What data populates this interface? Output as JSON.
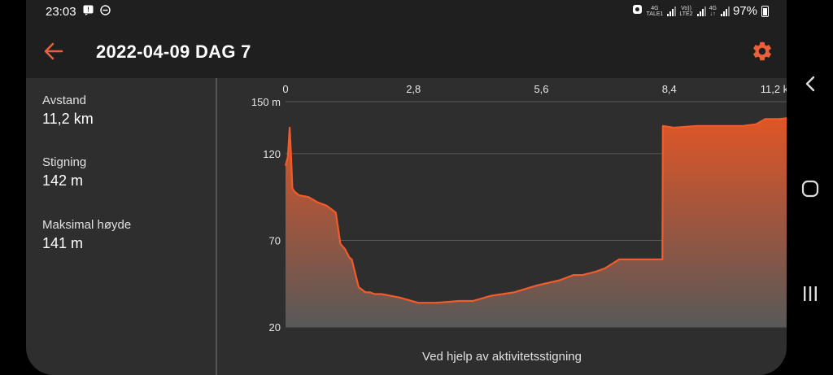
{
  "status_bar": {
    "time": "23:03",
    "battery": "97%",
    "sim1_net": "4G",
    "sim1_label": "TALE1",
    "volte": "Vo))",
    "lte2": "LTE2",
    "sim2_net": "4G",
    "sim2_label": "LTE2"
  },
  "app_bar": {
    "title": "2022-04-09 DAG 7",
    "back_icon": "arrow-left-icon",
    "settings_icon": "gear-icon",
    "accent_color": "#e8613a"
  },
  "stats": [
    {
      "label": "Avstand",
      "value": "11,2 km"
    },
    {
      "label": "Stigning",
      "value": "142 m"
    },
    {
      "label": "Maksimal høyde",
      "value": "141 m"
    }
  ],
  "chart_data": {
    "type": "area",
    "x_ticks": [
      "0",
      "2,8",
      "5,6",
      "8,4",
      "11,2 km"
    ],
    "x_tick_values": [
      0,
      2.8,
      5.6,
      8.4,
      11.2
    ],
    "y_ticks": [
      "150 m",
      "120",
      "70",
      "20"
    ],
    "y_tick_values": [
      150,
      120,
      70,
      20
    ],
    "xlim": [
      0,
      11.2
    ],
    "ylim": [
      20,
      150
    ],
    "grid": true,
    "line_color": "#f25b2a",
    "fill_top_color": "#e05526",
    "fill_bottom_color": "#585858",
    "x": [
      0,
      0.05,
      0.09,
      0.12,
      0.15,
      0.2,
      0.3,
      0.5,
      0.7,
      0.9,
      1.1,
      1.2,
      1.3,
      1.4,
      1.45,
      1.6,
      1.75,
      1.85,
      1.95,
      2.1,
      2.5,
      2.9,
      3.0,
      3.3,
      3.8,
      4.1,
      4.5,
      5.0,
      5.5,
      6.0,
      6.3,
      6.5,
      6.8,
      7.0,
      7.3,
      7.7,
      8.0,
      8.2,
      8.25,
      8.26,
      8.5,
      9.0,
      9.5,
      10.0,
      10.3,
      10.5,
      10.8,
      11.2
    ],
    "y": [
      113,
      118,
      135,
      120,
      100,
      98,
      96,
      95,
      92,
      90,
      86,
      68,
      65,
      60,
      59,
      43,
      40,
      40,
      39,
      39,
      37,
      34,
      34,
      34,
      35,
      35,
      38,
      40,
      44,
      47,
      50,
      50,
      52,
      54,
      59,
      59,
      59,
      59,
      59,
      136,
      135,
      136,
      136,
      136,
      137,
      140,
      140,
      141
    ]
  },
  "chart_footnote": "Ved hjelp av aktivitetsstigning",
  "nav_bar": {
    "back_icon": "nav-back-icon",
    "home_icon": "nav-home-icon",
    "recents_icon": "nav-recents-icon"
  }
}
